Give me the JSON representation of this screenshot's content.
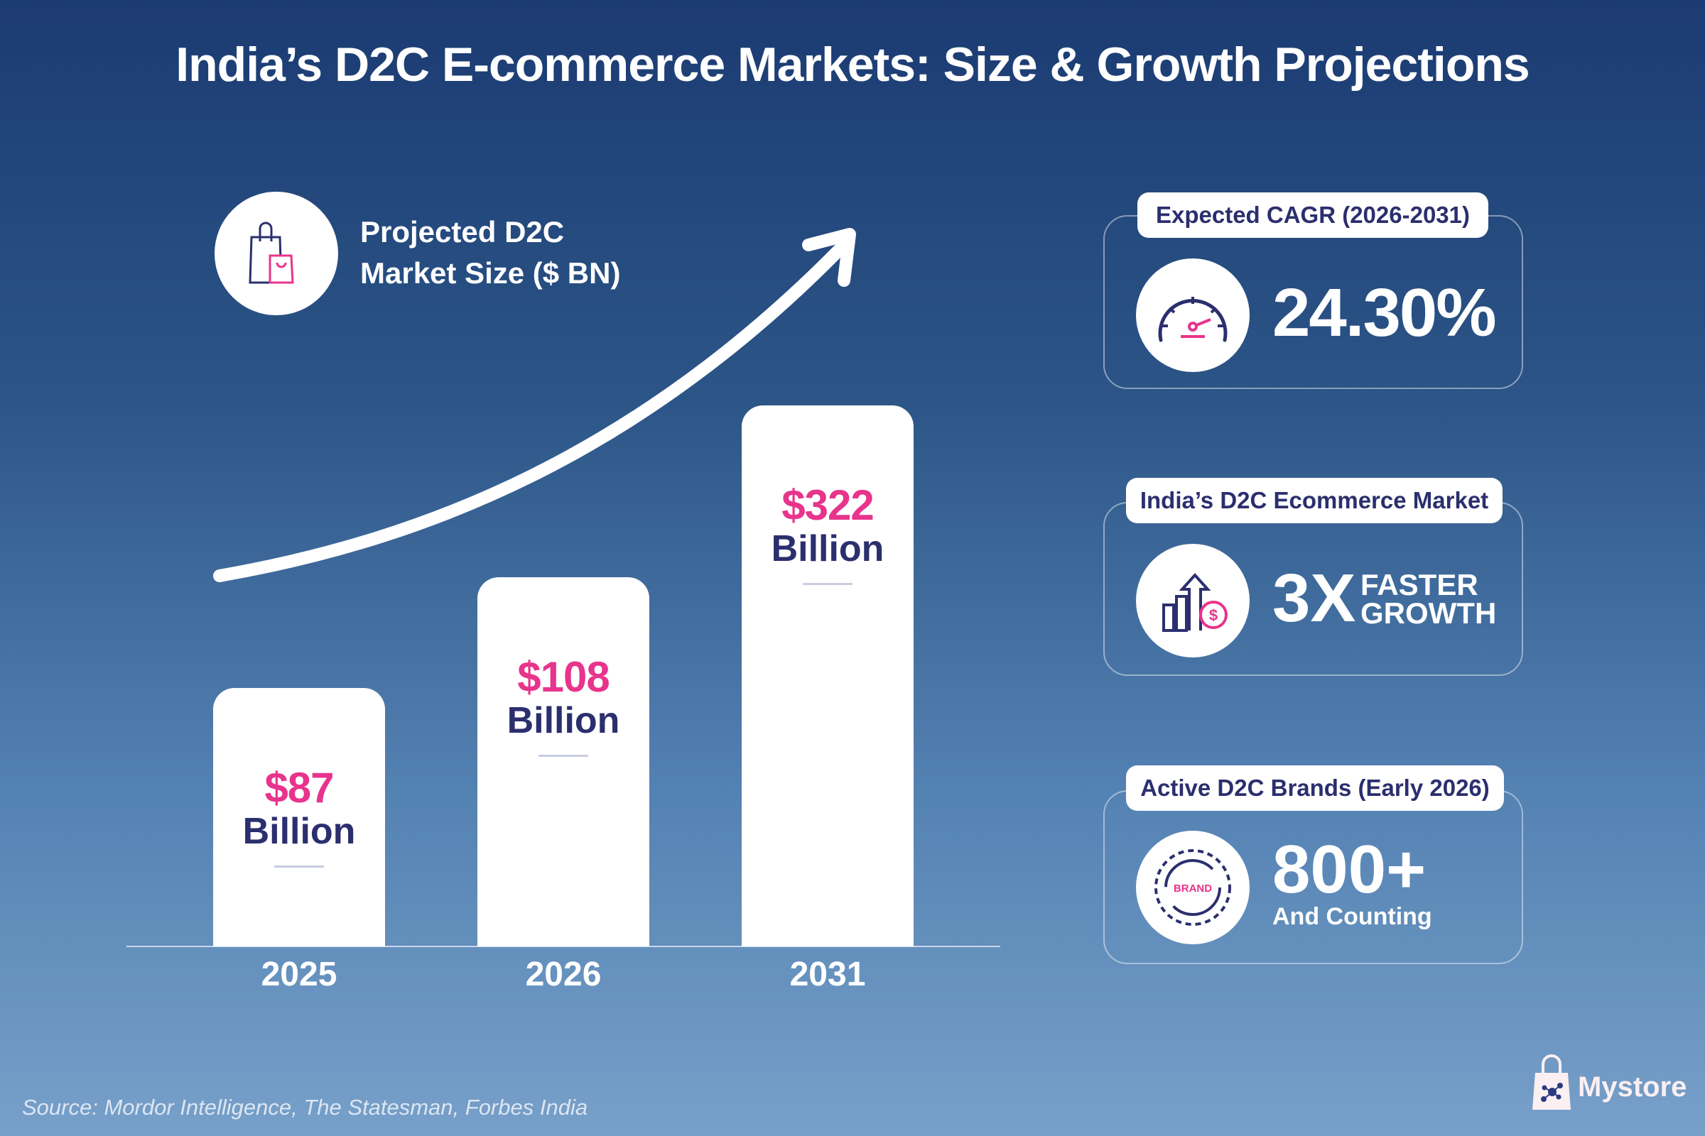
{
  "title": "India’s D2C E-commerce Markets: Size & Growth Projections",
  "legend": {
    "line1": "Projected D2C",
    "line2": "Market Size ($ BN)",
    "icon": "shopping-bags-icon"
  },
  "chart_data": {
    "type": "bar",
    "title": "Projected D2C Market Size ($ BN)",
    "categories": [
      "2025",
      "2026",
      "2031"
    ],
    "values": [
      87,
      108,
      322
    ],
    "data_labels": [
      {
        "value": "$87",
        "unit": "Billion"
      },
      {
        "value": "$108",
        "unit": "Billion"
      },
      {
        "value": "$322",
        "unit": "Billion"
      }
    ],
    "trend_arrow": "up",
    "grid": false
  },
  "stats": [
    {
      "label": "Expected CAGR (2026-2031)",
      "value": "24.30%",
      "icon": "speedometer-icon"
    },
    {
      "label": "India’s D2C Ecommerce Market",
      "value": "3X",
      "sub1": "FASTER",
      "sub2": "GROWTH",
      "icon": "growth-chart-dollar-icon"
    },
    {
      "label": "Active D2C Brands (Early 2026)",
      "value": "800+",
      "sub1": "And Counting",
      "icon_text": "BRAND",
      "icon": "brand-cycle-icon"
    }
  ],
  "source": "Source: Mordor Intelligence, The Statesman, Forbes India",
  "brand": {
    "name": "Mystore"
  },
  "colors": {
    "accent": "#e8348c",
    "navy": "#2b2f6e",
    "bg_top": "#1b3b72",
    "bg_bottom": "#77a0c9"
  }
}
